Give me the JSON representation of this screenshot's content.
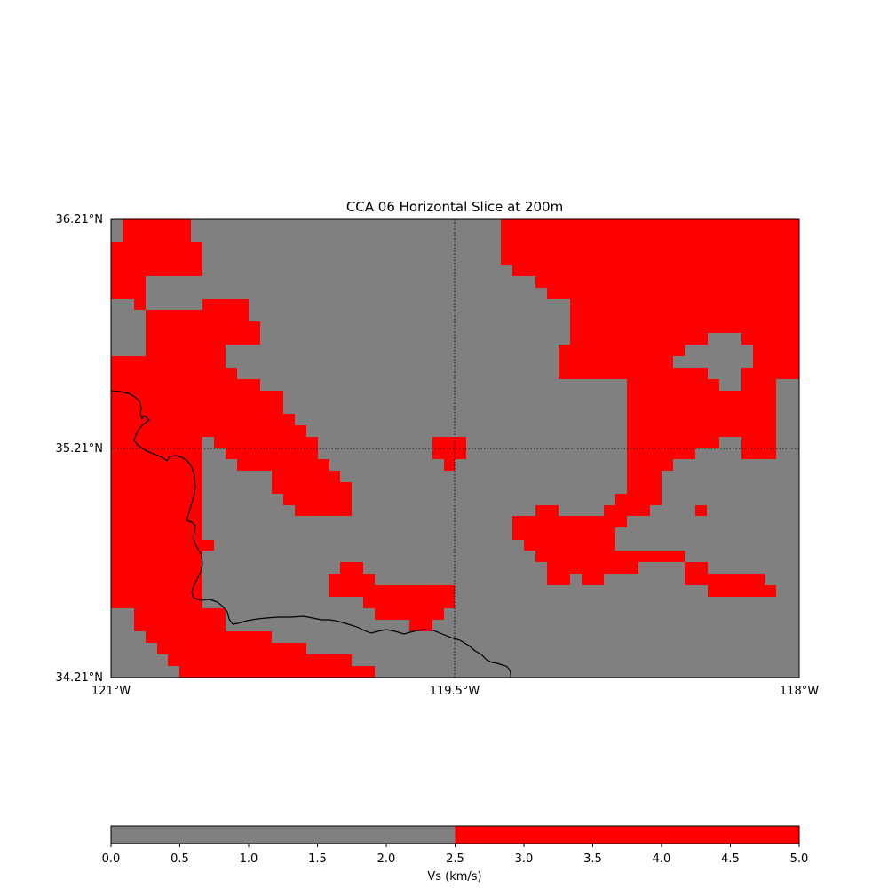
{
  "title": "CCA 06 Horizontal Slice at 200m",
  "map": {
    "lat_labels": [
      "36.21°N",
      "35.21°N",
      "34.21°N"
    ],
    "lon_labels": [
      "121°W",
      "119.5°W",
      "118°W"
    ],
    "lon_range_deg_west": [
      121,
      118
    ],
    "lat_range_deg_north": [
      34.21,
      36.21
    ],
    "grid_lines": {
      "lon": 119.5,
      "lat": 35.21,
      "style": "dotted"
    },
    "colors": {
      "low": "#808080",
      "high": "#ff0000",
      "coast": "#000000"
    }
  },
  "colorbar": {
    "label": "Vs (km/s)",
    "ticks": [
      "0.0",
      "0.5",
      "1.0",
      "1.5",
      "2.0",
      "2.5",
      "3.0",
      "3.5",
      "4.0",
      "4.5",
      "5.0"
    ],
    "range": [
      0,
      5
    ],
    "segments": [
      {
        "from": 0,
        "to": 2.5,
        "color": "#808080"
      },
      {
        "from": 2.5,
        "to": 5,
        "color": "#ff0000"
      }
    ]
  }
}
